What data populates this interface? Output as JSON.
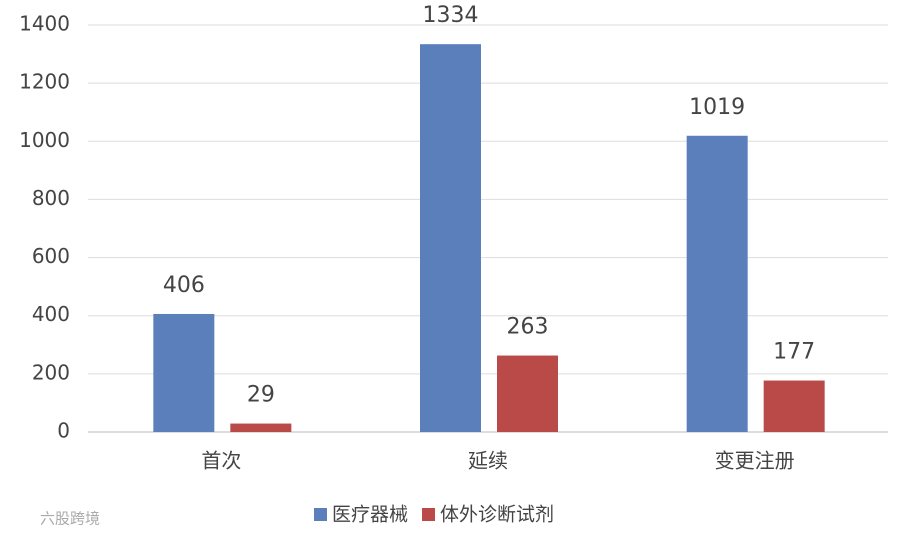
{
  "chart_data": {
    "type": "bar",
    "categories": [
      "首次",
      "延续",
      "变更注册"
    ],
    "series": [
      {
        "name": "医疗器械",
        "color": "#5a7fba",
        "values": [
          406,
          1334,
          1019
        ]
      },
      {
        "name": "体外诊断试剂",
        "color": "#b94a48",
        "values": [
          29,
          263,
          177
        ]
      }
    ],
    "ylim": [
      0,
      1400
    ],
    "yticks": [
      0,
      200,
      400,
      600,
      800,
      1000,
      1200,
      1400
    ],
    "grid": true,
    "legend": "bottom",
    "watermark": "六股跨境"
  }
}
